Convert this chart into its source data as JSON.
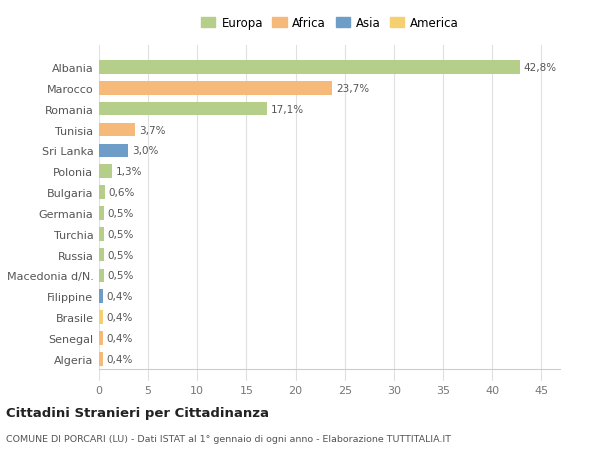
{
  "categories": [
    "Albania",
    "Marocco",
    "Romania",
    "Tunisia",
    "Sri Lanka",
    "Polonia",
    "Bulgaria",
    "Germania",
    "Turchia",
    "Russia",
    "Macedonia d/N.",
    "Filippine",
    "Brasile",
    "Senegal",
    "Algeria"
  ],
  "values": [
    42.8,
    23.7,
    17.1,
    3.7,
    3.0,
    1.3,
    0.6,
    0.5,
    0.5,
    0.5,
    0.5,
    0.4,
    0.4,
    0.4,
    0.4
  ],
  "labels": [
    "42,8%",
    "23,7%",
    "17,1%",
    "3,7%",
    "3,0%",
    "1,3%",
    "0,6%",
    "0,5%",
    "0,5%",
    "0,5%",
    "0,5%",
    "0,4%",
    "0,4%",
    "0,4%",
    "0,4%"
  ],
  "colors": [
    "#b5cf8a",
    "#f5b97a",
    "#b5cf8a",
    "#f5b97a",
    "#6e9ec8",
    "#b5cf8a",
    "#b5cf8a",
    "#b5cf8a",
    "#b5cf8a",
    "#b5cf8a",
    "#b5cf8a",
    "#6e9ec8",
    "#f5d070",
    "#f5b97a",
    "#f5b97a"
  ],
  "legend": [
    {
      "label": "Europa",
      "color": "#b5cf8a"
    },
    {
      "label": "Africa",
      "color": "#f5b97a"
    },
    {
      "label": "Asia",
      "color": "#6e9ec8"
    },
    {
      "label": "America",
      "color": "#f5d070"
    }
  ],
  "xlim": [
    0,
    47
  ],
  "xticks": [
    0,
    5,
    10,
    15,
    20,
    25,
    30,
    35,
    40,
    45
  ],
  "title": "Cittadini Stranieri per Cittadinanza",
  "subtitle": "COMUNE DI PORCARI (LU) - Dati ISTAT al 1° gennaio di ogni anno - Elaborazione TUTTITALIA.IT",
  "bg_color": "#ffffff",
  "grid_color": "#e0e0e0",
  "bar_height": 0.65
}
